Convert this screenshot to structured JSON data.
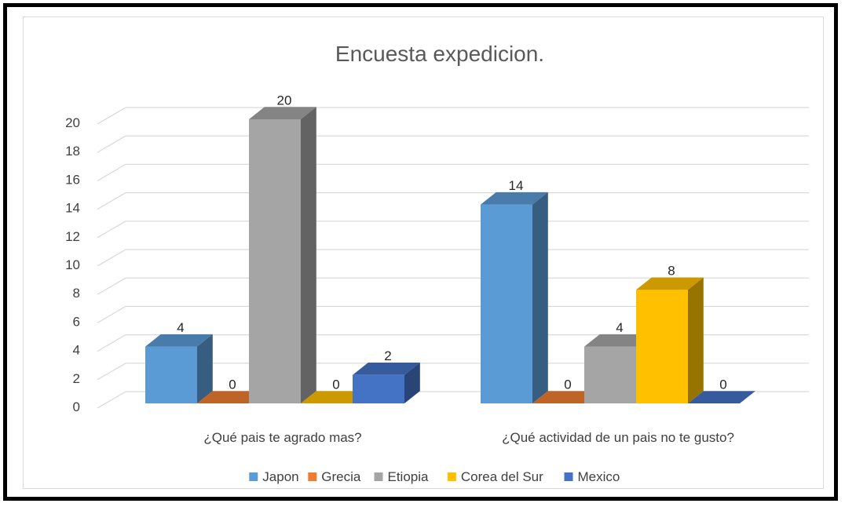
{
  "chart_data": {
    "type": "bar",
    "title": "Encuesta expedicion.",
    "categories": [
      "¿Qué pais te agrado mas?",
      "¿Qué actividad de un pais no te gusto?"
    ],
    "series": [
      {
        "name": "Japon",
        "values": [
          4,
          14
        ],
        "color": "#5b9bd5"
      },
      {
        "name": "Grecia",
        "values": [
          0,
          0
        ],
        "color": "#ed7d31"
      },
      {
        "name": "Etiopia",
        "values": [
          20,
          4
        ],
        "color": "#a5a5a5"
      },
      {
        "name": "Corea del Sur",
        "values": [
          0,
          8
        ],
        "color": "#ffc000"
      },
      {
        "name": "Mexico",
        "values": [
          2,
          0
        ],
        "color": "#4472c4"
      }
    ],
    "ylim": [
      0,
      20
    ],
    "yticks": [
      "0",
      "2",
      "4",
      "6",
      "8",
      "10",
      "12",
      "14",
      "16",
      "18",
      "20"
    ],
    "grid": true,
    "legend_position": "bottom",
    "style": "3d-clustered-column"
  }
}
